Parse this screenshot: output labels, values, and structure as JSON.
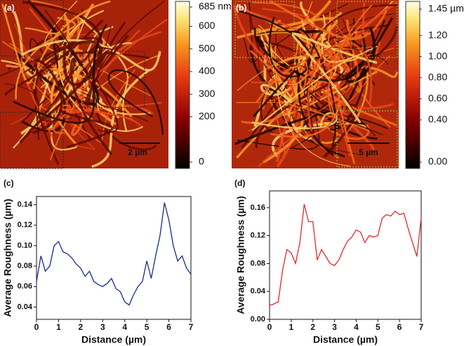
{
  "images": [
    {
      "label": "(a)",
      "scale_bar": "2 µm",
      "colorbar_lim": [
        0,
        685
      ],
      "colorbar_ticks": [
        {
          "value": 685,
          "label": "685 nm"
        },
        600,
        500,
        400,
        300,
        200,
        0
      ]
    },
    {
      "label": "(b)",
      "scale_bar": "5 µm",
      "colorbar_lim": [
        0,
        1.45
      ],
      "colorbar_ticks": [
        {
          "value": 1.45,
          "label": "1.45 µm"
        },
        {
          "value": 1.2,
          "label": "1.20"
        },
        {
          "value": 1.0,
          "label": "1.00"
        },
        {
          "value": 0.8,
          "label": "0.80"
        },
        {
          "value": 0.6,
          "label": "0.60"
        },
        {
          "value": 0.4,
          "label": "0.40"
        },
        {
          "value": 0,
          "label": "0.00"
        }
      ]
    }
  ],
  "chart_data": [
    {
      "type": "line",
      "label": "(c)",
      "xlabel": "Distance (µm)",
      "ylabel": "Average Roughness (µm)",
      "color": "#1b2a8f",
      "x": [
        0,
        0.2,
        0.4,
        0.6,
        0.8,
        1.0,
        1.2,
        1.4,
        1.6,
        1.8,
        2.0,
        2.2,
        2.4,
        2.6,
        2.8,
        3.0,
        3.2,
        3.4,
        3.6,
        3.8,
        4.0,
        4.2,
        4.4,
        4.6,
        4.8,
        5.0,
        5.2,
        5.4,
        5.6,
        5.8,
        6.0,
        6.2,
        6.4,
        6.6,
        6.8,
        7.0
      ],
      "values": [
        0.065,
        0.09,
        0.075,
        0.08,
        0.1,
        0.104,
        0.094,
        0.092,
        0.088,
        0.082,
        0.078,
        0.07,
        0.075,
        0.065,
        0.062,
        0.06,
        0.063,
        0.068,
        0.058,
        0.055,
        0.045,
        0.042,
        0.052,
        0.06,
        0.065,
        0.085,
        0.068,
        0.09,
        0.11,
        0.142,
        0.125,
        0.1,
        0.085,
        0.09,
        0.078,
        0.072
      ],
      "xlim": [
        0,
        7
      ],
      "xticks": [
        0,
        1,
        2,
        3,
        4,
        5,
        6,
        7
      ],
      "ylim": [
        0.028,
        0.148
      ],
      "yticks": [
        0.04,
        0.06,
        0.08,
        {
          "value": 0.1,
          "label": "0.10"
        },
        0.12,
        0.14
      ]
    },
    {
      "type": "line",
      "label": "(d)",
      "xlabel": "Distance (µm)",
      "ylabel": "Average Roughness (µm)",
      "color": "#e8262a",
      "x": [
        0,
        0.2,
        0.4,
        0.6,
        0.8,
        1.0,
        1.2,
        1.4,
        1.6,
        1.8,
        2.0,
        2.2,
        2.4,
        2.6,
        2.8,
        3.0,
        3.2,
        3.4,
        3.6,
        3.8,
        4.0,
        4.2,
        4.4,
        4.6,
        4.8,
        5.0,
        5.2,
        5.4,
        5.6,
        5.8,
        6.0,
        6.2,
        6.4,
        6.6,
        6.8,
        7.0
      ],
      "values": [
        0.02,
        0.022,
        0.025,
        0.07,
        0.1,
        0.095,
        0.08,
        0.11,
        0.165,
        0.14,
        0.14,
        0.085,
        0.1,
        0.09,
        0.08,
        0.077,
        0.085,
        0.1,
        0.112,
        0.118,
        0.128,
        0.125,
        0.11,
        0.12,
        0.118,
        0.12,
        0.145,
        0.15,
        0.148,
        0.155,
        0.15,
        0.152,
        0.13,
        0.11,
        0.09,
        0.145
      ],
      "xlim": [
        0,
        7
      ],
      "xticks": [
        0,
        1,
        2,
        3,
        4,
        5,
        6,
        7
      ],
      "ylim": [
        0,
        0.184
      ],
      "yticks": [
        {
          "value": 0,
          "label": "0.00"
        },
        0.04,
        0.08,
        0.12,
        0.16
      ]
    }
  ]
}
